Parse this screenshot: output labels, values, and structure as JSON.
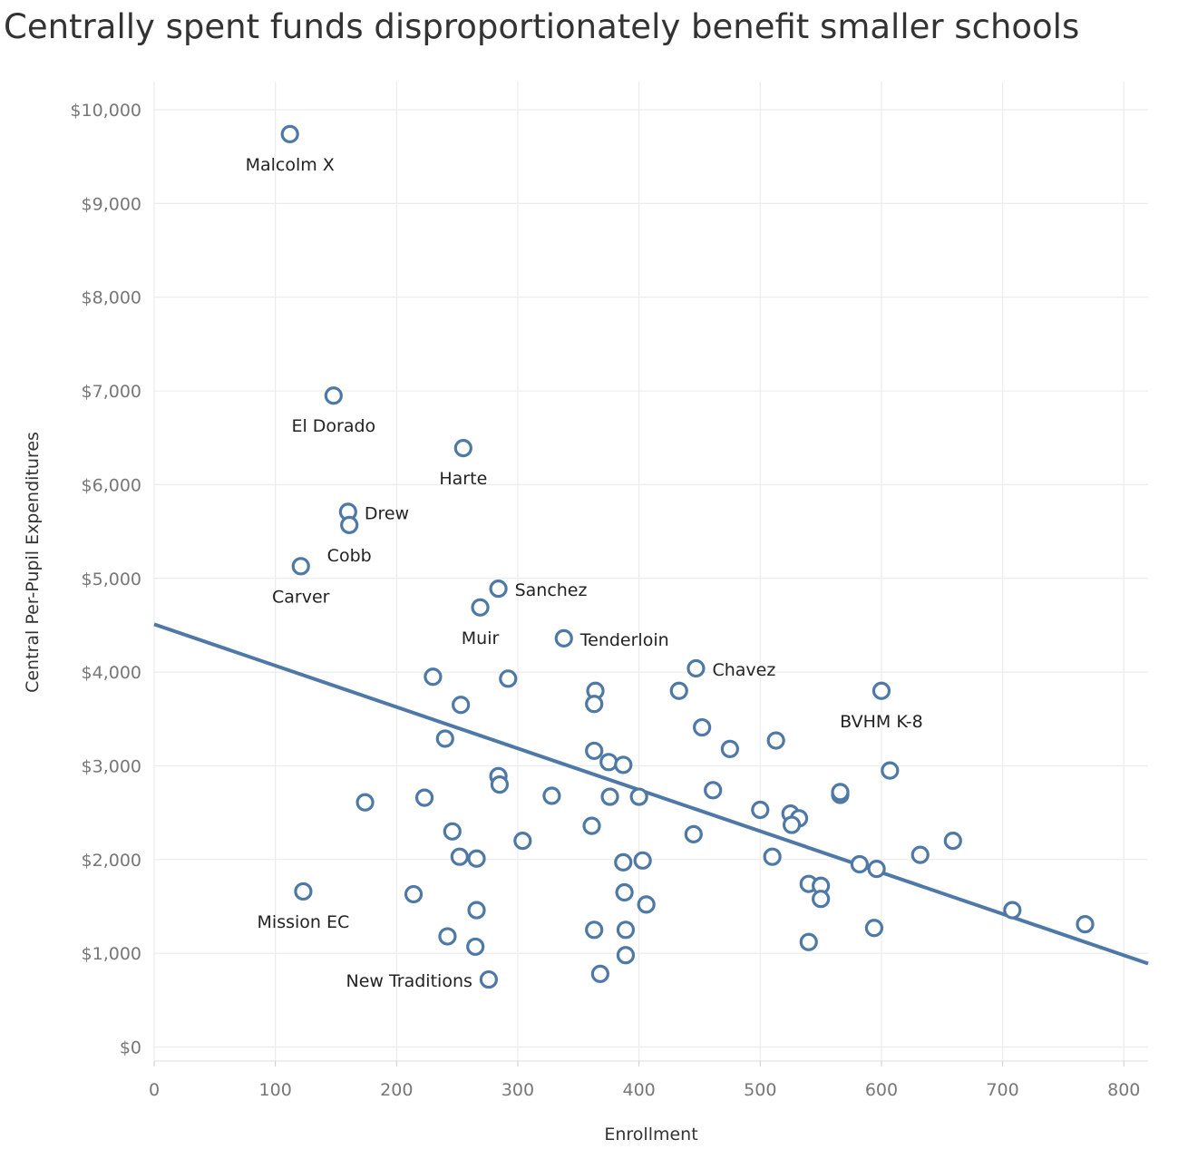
{
  "chart_data": {
    "type": "scatter",
    "title": "Centrally spent funds disproportionately benefit smaller schools",
    "xlabel": "Enrollment",
    "ylabel": "Central Per-Pupil Expenditures",
    "xlim": [
      0,
      820
    ],
    "ylim": [
      -150,
      10300
    ],
    "x_ticks": [
      {
        "value": 0,
        "label": "0"
      },
      {
        "value": 100,
        "label": "100"
      },
      {
        "value": 200,
        "label": "200"
      },
      {
        "value": 300,
        "label": "300"
      },
      {
        "value": 400,
        "label": "400"
      },
      {
        "value": 500,
        "label": "500"
      },
      {
        "value": 600,
        "label": "600"
      },
      {
        "value": 700,
        "label": "700"
      },
      {
        "value": 800,
        "label": "800"
      }
    ],
    "y_ticks": [
      {
        "value": 0,
        "label": "$0"
      },
      {
        "value": 1000,
        "label": "$1,000"
      },
      {
        "value": 2000,
        "label": "$2,000"
      },
      {
        "value": 3000,
        "label": "$3,000"
      },
      {
        "value": 4000,
        "label": "$4,000"
      },
      {
        "value": 5000,
        "label": "$5,000"
      },
      {
        "value": 6000,
        "label": "$6,000"
      },
      {
        "value": 7000,
        "label": "$7,000"
      },
      {
        "value": 8000,
        "label": "$8,000"
      },
      {
        "value": 9000,
        "label": "$9,000"
      },
      {
        "value": 10000,
        "label": "$10,000"
      }
    ],
    "grid": true,
    "trend_line": {
      "x": [
        0,
        820
      ],
      "y": [
        4510,
        890
      ]
    },
    "color": "#4e79a7",
    "points": [
      {
        "x": 112,
        "y": 9740,
        "label": "Malcolm X",
        "label_pos": "below"
      },
      {
        "x": 148,
        "y": 6950,
        "label": "El Dorado",
        "label_pos": "below"
      },
      {
        "x": 255,
        "y": 6390,
        "label": "Harte",
        "label_pos": "below"
      },
      {
        "x": 160,
        "y": 5710,
        "label": "Drew",
        "label_pos": "right"
      },
      {
        "x": 161,
        "y": 5570,
        "label": "Cobb",
        "label_pos": "below"
      },
      {
        "x": 121,
        "y": 5130,
        "label": "Carver",
        "label_pos": "below"
      },
      {
        "x": 284,
        "y": 4890,
        "label": "Sanchez",
        "label_pos": "right"
      },
      {
        "x": 269,
        "y": 4690,
        "label": "Muir",
        "label_pos": "below"
      },
      {
        "x": 338,
        "y": 4360,
        "label": "Tenderloin",
        "label_pos": "right"
      },
      {
        "x": 447,
        "y": 4040,
        "label": "Chavez",
        "label_pos": "right"
      },
      {
        "x": 600,
        "y": 3800,
        "label": "BVHM K-8",
        "label_pos": "below"
      },
      {
        "x": 123,
        "y": 1660,
        "label": "Mission EC",
        "label_pos": "below"
      },
      {
        "x": 276,
        "y": 720,
        "label": "New Traditions",
        "label_pos": "left"
      },
      {
        "x": 230,
        "y": 3950
      },
      {
        "x": 292,
        "y": 3930
      },
      {
        "x": 253,
        "y": 3650
      },
      {
        "x": 364,
        "y": 3800
      },
      {
        "x": 363,
        "y": 3660
      },
      {
        "x": 433,
        "y": 3800
      },
      {
        "x": 452,
        "y": 3410
      },
      {
        "x": 240,
        "y": 3290
      },
      {
        "x": 475,
        "y": 3180
      },
      {
        "x": 513,
        "y": 3270
      },
      {
        "x": 363,
        "y": 3160
      },
      {
        "x": 375,
        "y": 3040
      },
      {
        "x": 387,
        "y": 3010
      },
      {
        "x": 284,
        "y": 2890
      },
      {
        "x": 285,
        "y": 2800
      },
      {
        "x": 607,
        "y": 2950
      },
      {
        "x": 174,
        "y": 2610
      },
      {
        "x": 223,
        "y": 2660
      },
      {
        "x": 328,
        "y": 2680
      },
      {
        "x": 376,
        "y": 2670
      },
      {
        "x": 400,
        "y": 2670
      },
      {
        "x": 461,
        "y": 2740
      },
      {
        "x": 566,
        "y": 2690
      },
      {
        "x": 566,
        "y": 2720
      },
      {
        "x": 500,
        "y": 2530
      },
      {
        "x": 525,
        "y": 2490
      },
      {
        "x": 532,
        "y": 2440
      },
      {
        "x": 526,
        "y": 2370
      },
      {
        "x": 361,
        "y": 2360
      },
      {
        "x": 246,
        "y": 2300
      },
      {
        "x": 445,
        "y": 2270
      },
      {
        "x": 304,
        "y": 2200
      },
      {
        "x": 659,
        "y": 2200
      },
      {
        "x": 252,
        "y": 2030
      },
      {
        "x": 266,
        "y": 2010
      },
      {
        "x": 387,
        "y": 1970
      },
      {
        "x": 403,
        "y": 1990
      },
      {
        "x": 510,
        "y": 2030
      },
      {
        "x": 632,
        "y": 2050
      },
      {
        "x": 582,
        "y": 1950
      },
      {
        "x": 596,
        "y": 1900
      },
      {
        "x": 540,
        "y": 1740
      },
      {
        "x": 550,
        "y": 1720
      },
      {
        "x": 550,
        "y": 1580
      },
      {
        "x": 214,
        "y": 1630
      },
      {
        "x": 388,
        "y": 1650
      },
      {
        "x": 406,
        "y": 1520
      },
      {
        "x": 266,
        "y": 1460
      },
      {
        "x": 708,
        "y": 1460
      },
      {
        "x": 768,
        "y": 1310
      },
      {
        "x": 363,
        "y": 1250
      },
      {
        "x": 389,
        "y": 1250
      },
      {
        "x": 594,
        "y": 1270
      },
      {
        "x": 242,
        "y": 1180
      },
      {
        "x": 265,
        "y": 1070
      },
      {
        "x": 540,
        "y": 1120
      },
      {
        "x": 389,
        "y": 980
      },
      {
        "x": 368,
        "y": 780
      }
    ]
  }
}
